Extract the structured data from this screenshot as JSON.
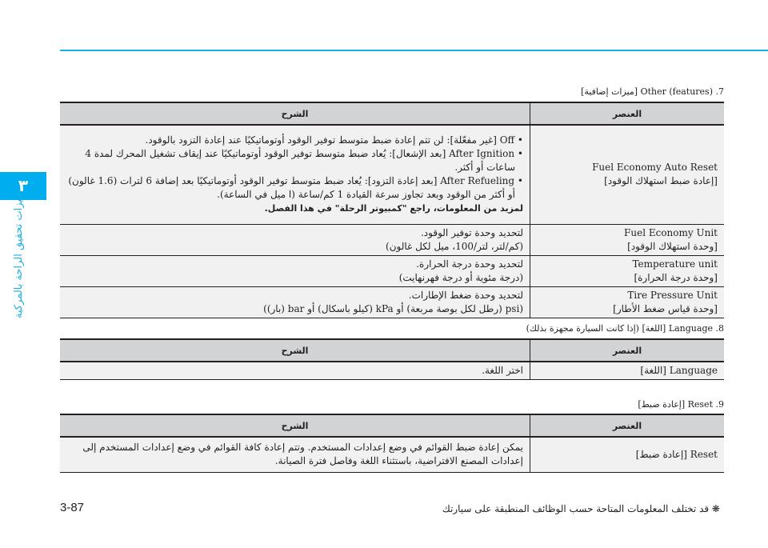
{
  "side_tab": {
    "chapter": "٣",
    "title": "ميزات تحقيق الراحة بالمركبة"
  },
  "table_headers": {
    "item": "العنصر",
    "description": "الشرح"
  },
  "section7": {
    "title": "7. Other (features) [ميزات إضافية]",
    "rows": [
      {
        "item": [
          "Fuel Economy Auto Reset",
          "[إعادة ضبط استهلاك الوقود]"
        ],
        "description": [
          "• Off [غير مفعّلة]: لن تتم إعادة ضبط متوسط توفير الوقود أوتوماتيكيًا عند إعادة التزود بالوقود.",
          "• After Ignition [بعد الإشعال]: يُعاد ضبط متوسط توفير الوقود أوتوماتيكيًا عند إيقاف تشغيل المحرك لمدة 4",
          "ساعات أو أكثر.",
          "• After Refueling [بعد إعادة التزود]: يُعاد ضبط متوسط توفير الوقود أوتوماتيكيًا بعد إضافة 6 لترات (1.6 غالون)",
          "أو أكثر من الوقود وبعد تجاوز سرعة القيادة 1 كم/ساعة (ا ميل في الساعة).",
          "لمزيد من المعلومات، راجع \"كمبيوتر الرحلة\" في هذا الفصل."
        ]
      },
      {
        "item": [
          "Fuel Economy Unit",
          "[وحدة استهلاك الوقود]"
        ],
        "description": [
          "لتحديد وحدة توفير الوقود.",
          "(كم/لتر، لتر/100، ميل لكل غالون)"
        ]
      },
      {
        "item": [
          "Temperature unit",
          "[وحدة درجة الحرارة]"
        ],
        "description": [
          "لتحديد وحدة درجة الحرارة.",
          "(درجة مئوية أو درجة فهرنهايت)"
        ]
      },
      {
        "item": [
          "Tire Pressure Unit",
          "[وحدة قياس ضغط الأطار]"
        ],
        "description": [
          "لتحديد وحدة ضغط الإطارات.",
          "(psi (رطل لكل بوصة مربعة) أو kPa (كيلو باسكال) أو bar (بار))"
        ]
      }
    ]
  },
  "section8": {
    "title": "8. Language [اللغة] (إذا كانت السيارة مجهزة بذلك)",
    "rows": [
      {
        "item": "Language [اللغة]",
        "description": "اختر اللغة."
      }
    ]
  },
  "section9": {
    "title": "9. Reset [إعادة ضبط]",
    "rows": [
      {
        "item": "Reset [إعادة ضبط]",
        "description": [
          "يمكن إعادة ضبط القوائم في وضع إعدادات المستخدم. وتتم إعادة كافة القوائم في وضع إعدادات المستخدم إلى",
          "إعدادات المصنع الافتراضية، باستثناء اللغة وفاصل فترة الصيانة."
        ]
      }
    ]
  },
  "note": "❋ قد تختلف المعلومات المتاحة حسب الوظائف المنطبقة على سيارتك",
  "page_number": "3-87",
  "colors": {
    "accent": "#00aeef",
    "header_bg": "#d1d3d4",
    "row_bg": "#f1f1f2"
  }
}
